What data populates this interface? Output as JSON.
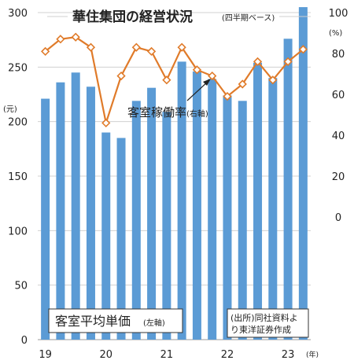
{
  "title": "華住集団の経営状況",
  "subtitle": "(四半期ベース)",
  "left_unit": "(元)",
  "right_unit": "(%)",
  "year_unit": "(年)",
  "bar_label": "客室平均単価",
  "bar_label_note": "(左軸)",
  "line_label": "客室稼働率",
  "line_label_note": "(右軸)",
  "source_line1": "(出所)同社資料よ",
  "source_line2": "り東洋証券作成",
  "colors": {
    "bar": "#5b9bd5",
    "line": "#e07b2a",
    "marker_fill": "#ffffff",
    "grid": "#d0d0d0"
  },
  "chart_data": {
    "type": "bar+line",
    "left_axis": {
      "ylim": [
        0,
        300
      ],
      "ticks": [
        "0",
        "50",
        "100",
        "150",
        "200",
        "250",
        "300"
      ]
    },
    "right_axis": {
      "ylim": [
        -60,
        100
      ],
      "ticks": [
        "0",
        "20",
        "40",
        "60",
        "80",
        "100"
      ]
    },
    "x_labels": [
      {
        "label": "19",
        "index": 0
      },
      {
        "label": "20",
        "index": 4
      },
      {
        "label": "21",
        "index": 8
      },
      {
        "label": "22",
        "index": 12
      },
      {
        "label": "23",
        "index": 16
      }
    ],
    "bars": [
      221,
      236,
      245,
      232,
      190,
      185,
      219,
      231,
      209,
      255,
      246,
      239,
      224,
      219,
      254,
      240,
      276,
      305
    ],
    "line": [
      81,
      87,
      88,
      83,
      46,
      69,
      83,
      81,
      67,
      83,
      72,
      69,
      59,
      65,
      76,
      67,
      76,
      82
    ]
  }
}
